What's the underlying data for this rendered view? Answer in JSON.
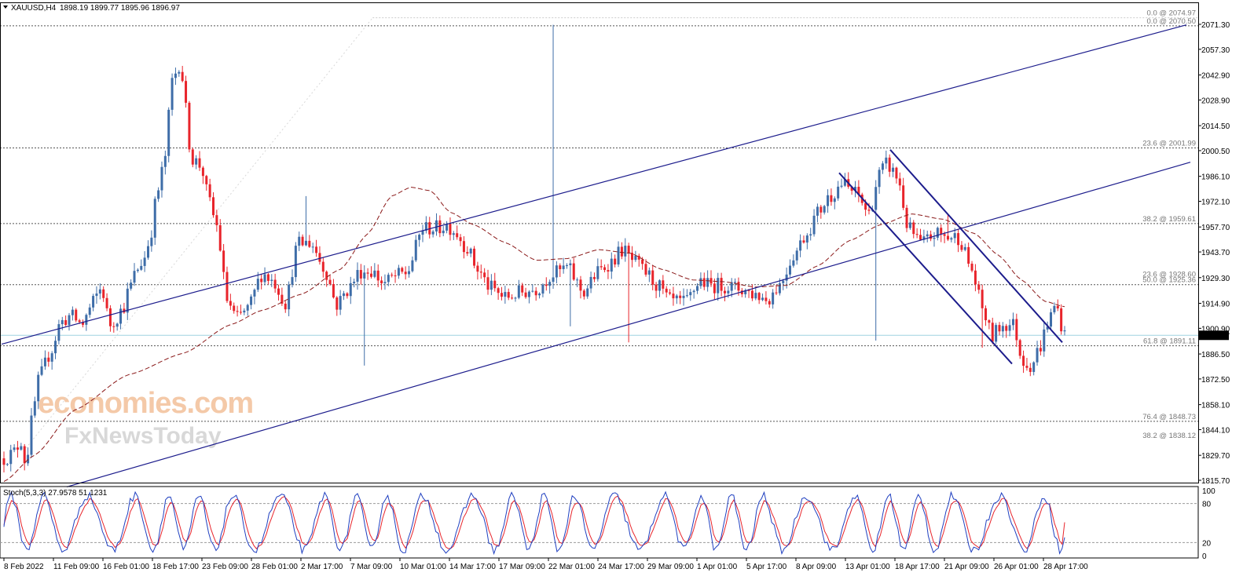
{
  "header": {
    "symbol_label": "XAUUSD,H4",
    "ohlc": "1898.19 1899.77 1895.96 1896.97"
  },
  "stoch": {
    "label": "Stoch(5,3,3) 27.9578 51.1231",
    "levels": [
      "100",
      "80",
      "20",
      "0"
    ]
  },
  "watermark": {
    "line1": "economies.com",
    "line2": "FxNewsToday"
  },
  "price_axis": {
    "labels": [
      "2071.30",
      "2057.30",
      "2042.90",
      "2028.90",
      "2014.50",
      "2000.50",
      "1986.10",
      "1972.10",
      "1957.70",
      "1943.70",
      "1929.30",
      "1914.90",
      "1900.90",
      "1886.50",
      "1872.50",
      "1858.10",
      "1844.10",
      "1829.70",
      "1815.70"
    ],
    "current_price": "1896.97"
  },
  "time_axis": {
    "labels": [
      "8 Feb 2022",
      "11 Feb 09:00",
      "16 Feb 01:00",
      "18 Feb 17:00",
      "23 Feb 09:00",
      "28 Feb 01:00",
      "2 Mar 17:00",
      "7 Mar 09:00",
      "10 Mar 01:00",
      "14 Mar 17:00",
      "17 Mar 09:00",
      "22 Mar 01:00",
      "24 Mar 17:00",
      "29 Mar 09:00",
      "1 Apr 01:00",
      "5 Apr 17:00",
      "8 Apr 09:00",
      "13 Apr 01:00",
      "18 Apr 17:00",
      "21 Apr 09:00",
      "26 Apr 01:00",
      "28 Apr 17:00"
    ]
  },
  "fib_levels": [
    {
      "label": "0.0 @ 2074.97",
      "style": "light"
    },
    {
      "label": "0.0 @ 2070.50",
      "style": "dotted"
    },
    {
      "label": "23.6 @ 2001.99",
      "style": "dotted"
    },
    {
      "label": "38.2 @ 1959.61",
      "style": "dotted"
    },
    {
      "label": "23.6 @ 1928.60",
      "style": "light"
    },
    {
      "label": "50.0 @ 1925.36",
      "style": "dotted"
    },
    {
      "label": "61.8 @ 1891.11",
      "style": "dotted"
    },
    {
      "label": "76.4 @ 1848.73",
      "style": "dotted"
    },
    {
      "label": "38.2 @ 1838.12",
      "style": "light"
    }
  ],
  "colors": {
    "bull": "#3e6da8",
    "bear": "#e8242b",
    "ma": "#8b1a1a",
    "trend": "#1c1c8c",
    "stoch_main": "#1f3fc0",
    "stoch_signal": "#e8242b",
    "grid": "#808080",
    "current_price_line": "#9fd3e0",
    "watermark1": "#f4c9a8",
    "watermark2": "#d8d8d8"
  },
  "chart_data": {
    "type": "candlestick",
    "symbol": "XAUUSD",
    "timeframe": "H4",
    "ylim": [
      1812,
      2078
    ],
    "bar_count": 310,
    "anchors": [
      [
        0,
        1828
      ],
      [
        12,
        1831
      ],
      [
        22,
        1838
      ],
      [
        28,
        1824
      ],
      [
        35,
        1848
      ],
      [
        45,
        1873
      ],
      [
        60,
        1888
      ],
      [
        72,
        1904
      ],
      [
        85,
        1908
      ],
      [
        100,
        1903
      ],
      [
        110,
        1912
      ],
      [
        118,
        1919
      ],
      [
        125,
        1924
      ],
      [
        135,
        1903
      ],
      [
        140,
        1905
      ],
      [
        152,
        1912
      ],
      [
        160,
        1923
      ],
      [
        170,
        1934
      ],
      [
        180,
        1941
      ],
      [
        188,
        1955
      ],
      [
        195,
        1975
      ],
      [
        205,
        1994
      ],
      [
        215,
        2040
      ],
      [
        225,
        2050
      ],
      [
        240,
        1996
      ],
      [
        252,
        1992
      ],
      [
        262,
        1972
      ],
      [
        272,
        1958
      ],
      [
        285,
        1917
      ],
      [
        297,
        1906
      ],
      [
        312,
        1912
      ],
      [
        330,
        1932
      ],
      [
        345,
        1927
      ],
      [
        360,
        1915
      ],
      [
        375,
        1948
      ],
      [
        392,
        1949
      ],
      [
        410,
        1934
      ],
      [
        425,
        1914
      ],
      [
        440,
        1923
      ],
      [
        455,
        1933
      ],
      [
        470,
        1933
      ],
      [
        485,
        1926
      ],
      [
        500,
        1930
      ],
      [
        515,
        1932
      ],
      [
        535,
        1957
      ],
      [
        555,
        1957
      ],
      [
        565,
        1959
      ],
      [
        575,
        1956
      ],
      [
        590,
        1947
      ],
      [
        605,
        1934
      ],
      [
        620,
        1924
      ],
      [
        640,
        1918
      ],
      [
        660,
        1921
      ],
      [
        680,
        1923
      ],
      [
        700,
        1931
      ],
      [
        720,
        1935
      ],
      [
        740,
        1921
      ],
      [
        760,
        1933
      ],
      [
        775,
        1938
      ],
      [
        790,
        1945
      ],
      [
        805,
        1938
      ],
      [
        820,
        1932
      ],
      [
        835,
        1925
      ],
      [
        850,
        1916
      ],
      [
        870,
        1915
      ],
      [
        890,
        1928
      ],
      [
        900,
        1925
      ],
      [
        920,
        1925
      ],
      [
        940,
        1923
      ],
      [
        960,
        1920
      ],
      [
        975,
        1917
      ],
      [
        990,
        1925
      ],
      [
        1010,
        1943
      ],
      [
        1025,
        1954
      ],
      [
        1040,
        1966
      ],
      [
        1055,
        1975
      ],
      [
        1070,
        1982
      ],
      [
        1090,
        1976
      ],
      [
        1105,
        1965
      ],
      [
        1118,
        1987
      ],
      [
        1128,
        1993
      ],
      [
        1142,
        1985
      ],
      [
        1155,
        1957
      ],
      [
        1172,
        1948
      ],
      [
        1190,
        1954
      ],
      [
        1205,
        1952
      ],
      [
        1220,
        1952
      ],
      [
        1235,
        1935
      ],
      [
        1250,
        1912
      ],
      [
        1262,
        1896
      ],
      [
        1275,
        1903
      ],
      [
        1290,
        1903
      ],
      [
        1300,
        1884
      ],
      [
        1312,
        1880
      ],
      [
        1322,
        1889
      ],
      [
        1335,
        1906
      ],
      [
        1344,
        1914
      ],
      [
        1355,
        1897
      ]
    ],
    "moving_average_anchors": [
      [
        0,
        1815
      ],
      [
        40,
        1830
      ],
      [
        90,
        1855
      ],
      [
        160,
        1875
      ],
      [
        230,
        1887
      ],
      [
        290,
        1903
      ],
      [
        330,
        1911
      ],
      [
        380,
        1920
      ],
      [
        430,
        1934
      ],
      [
        465,
        1954
      ],
      [
        495,
        1975
      ],
      [
        520,
        1980
      ],
      [
        545,
        1978
      ],
      [
        570,
        1966
      ],
      [
        600,
        1959
      ],
      [
        640,
        1949
      ],
      [
        680,
        1939
      ],
      [
        720,
        1940
      ],
      [
        760,
        1945
      ],
      [
        800,
        1943
      ],
      [
        840,
        1934
      ],
      [
        880,
        1928
      ],
      [
        920,
        1927
      ],
      [
        960,
        1924
      ],
      [
        1000,
        1925
      ],
      [
        1040,
        1936
      ],
      [
        1080,
        1950
      ],
      [
        1120,
        1959
      ],
      [
        1160,
        1965
      ],
      [
        1200,
        1962
      ],
      [
        1240,
        1954
      ],
      [
        1270,
        1942
      ],
      [
        1300,
        1928
      ],
      [
        1330,
        1916
      ],
      [
        1355,
        1913
      ]
    ],
    "channels": [
      {
        "name": "ascending channel upper",
        "from": [
          2,
          1892
        ],
        "to": [
          1510,
          2071
        ]
      },
      {
        "name": "ascending channel lower",
        "from": [
          85,
          1812
        ],
        "to": [
          1515,
          1994
        ]
      },
      {
        "name": "descending channel upper",
        "from": [
          1133,
          2001
        ],
        "to": [
          1352,
          1893
        ]
      },
      {
        "name": "descending channel lower",
        "from": [
          1068,
          1988
        ],
        "to": [
          1288,
          1881
        ]
      }
    ],
    "stochastic": {
      "params": "5,3,3",
      "main": 27.9578,
      "signal": 51.1231,
      "range": [
        0,
        100
      ],
      "levels": [
        80,
        20
      ]
    }
  }
}
